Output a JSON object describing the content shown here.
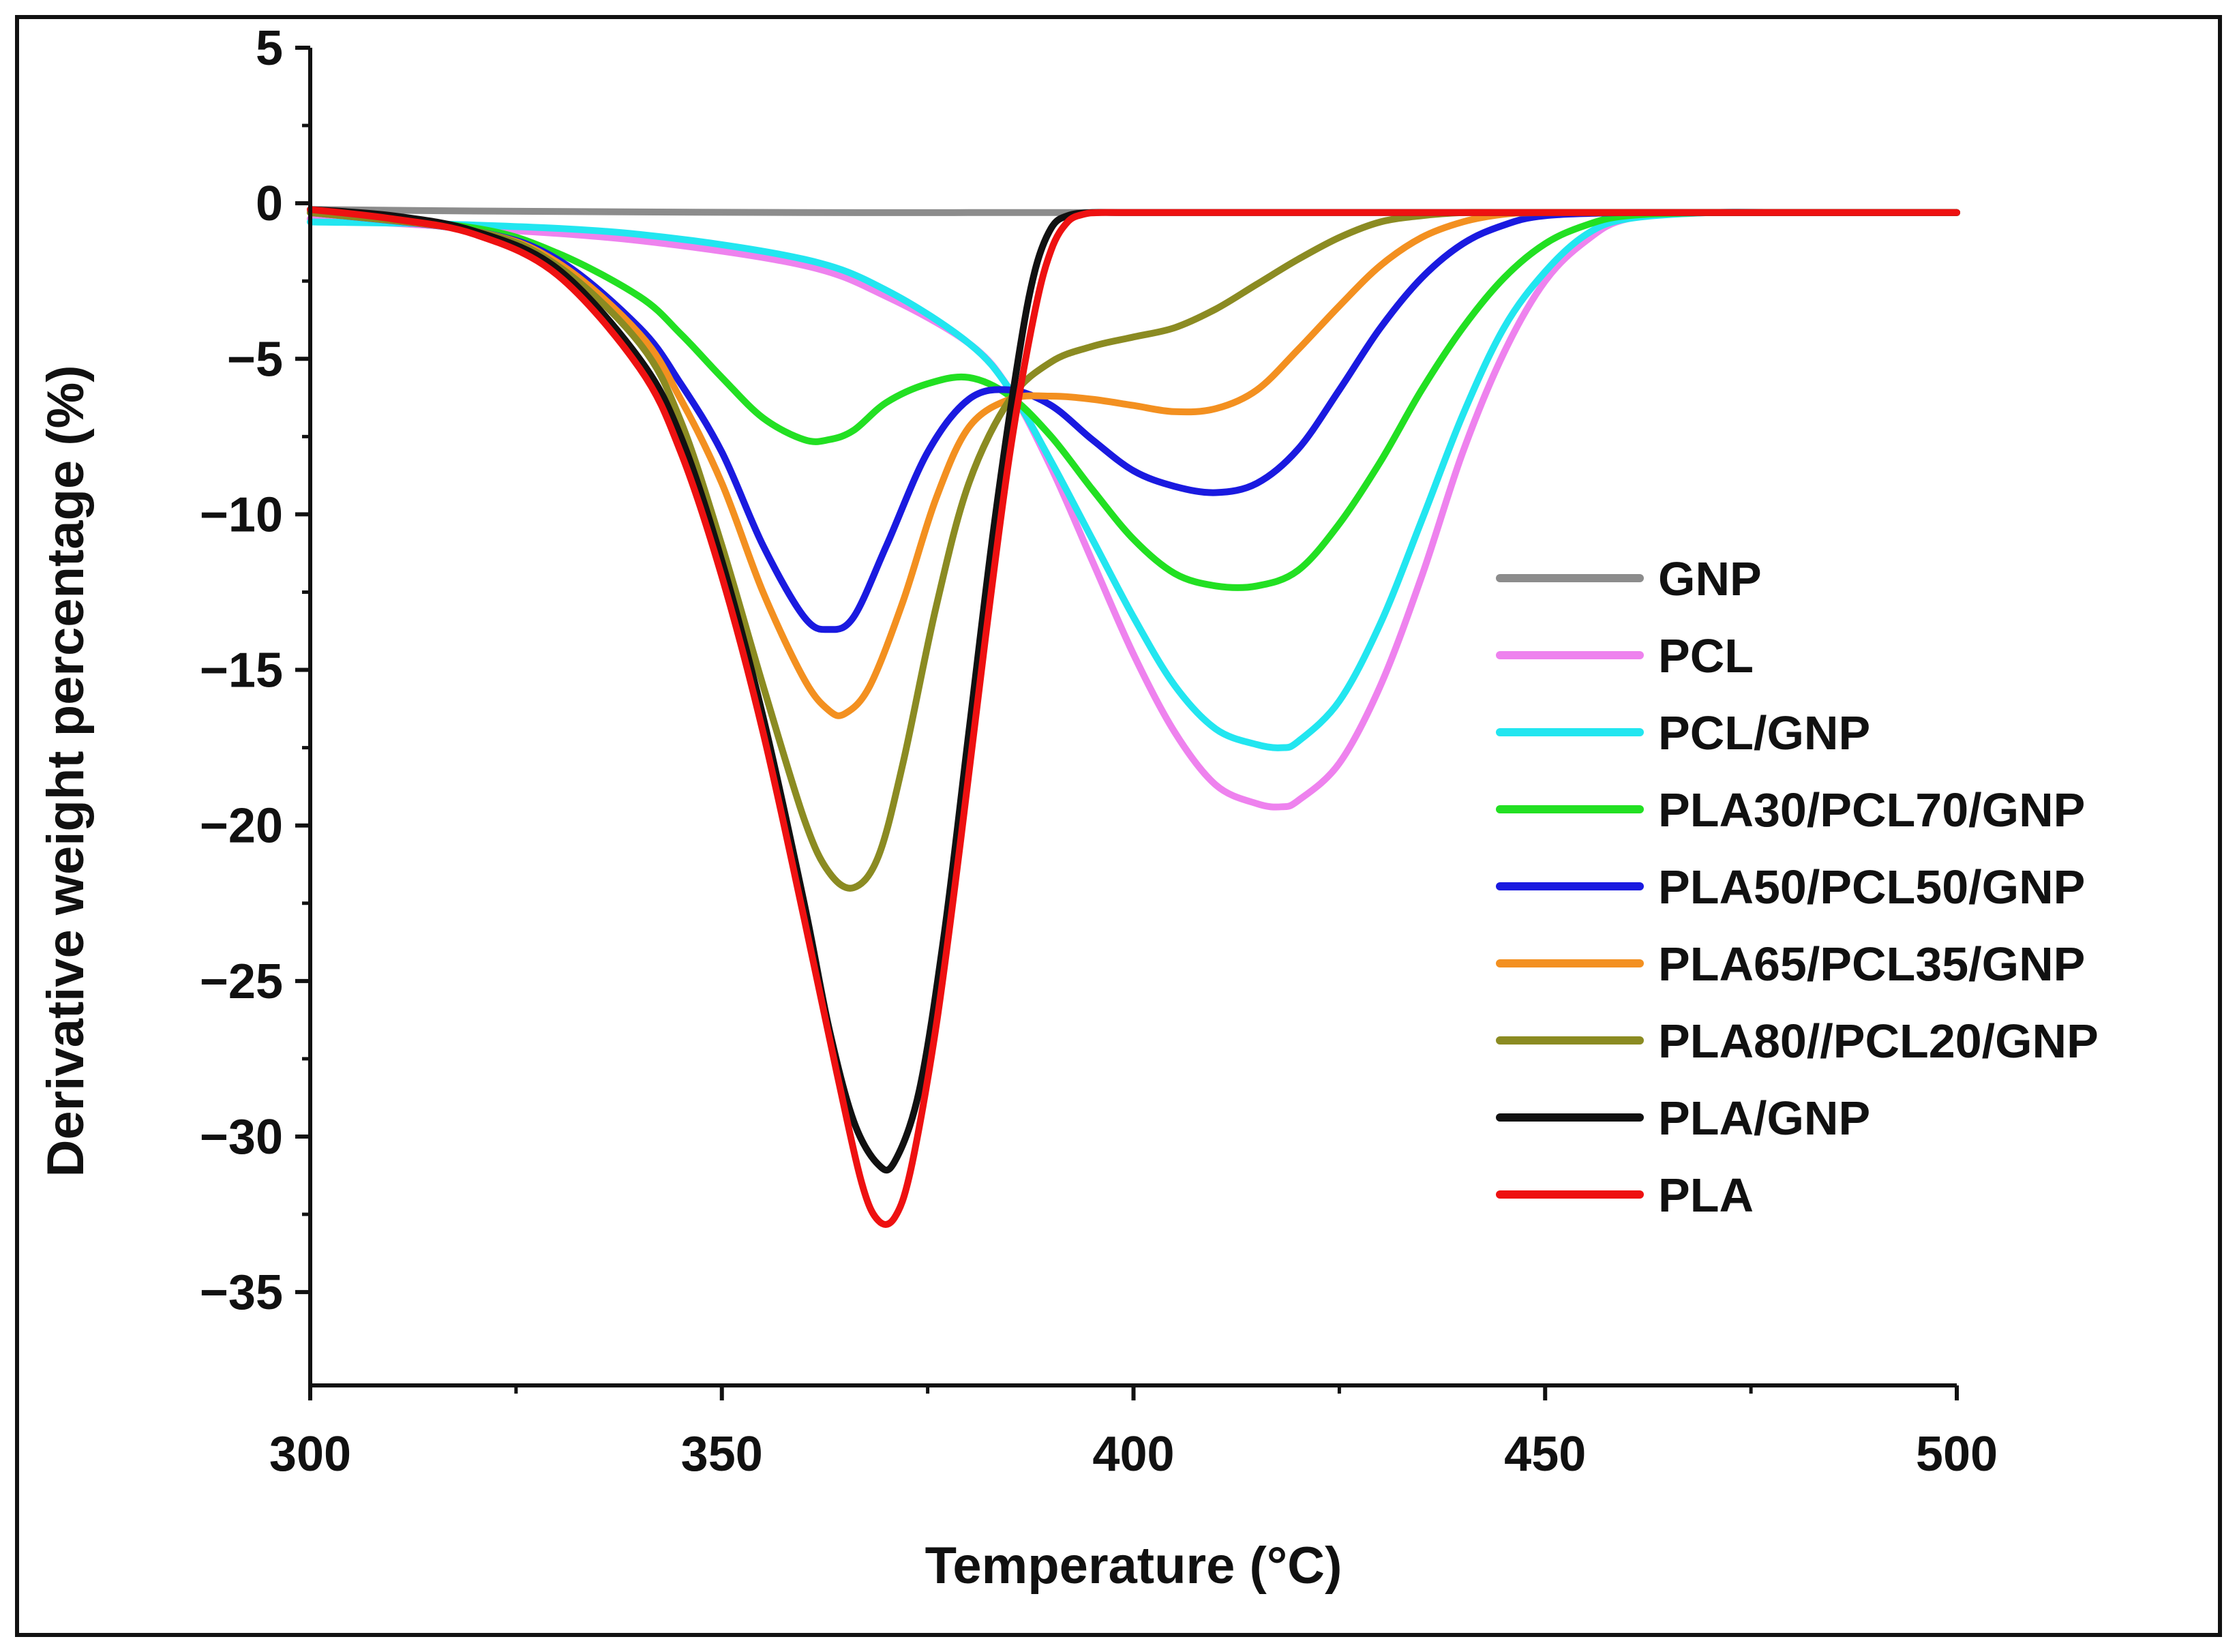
{
  "chart_data": {
    "type": "line",
    "title": "",
    "xlabel": "Temperature (°C)",
    "ylabel": "Derivative weight percentage (%)",
    "xlim": [
      300,
      500
    ],
    "ylim": [
      -38,
      5
    ],
    "xticks": [
      300,
      350,
      400,
      450,
      500
    ],
    "yticks": [
      5,
      0,
      -5,
      -10,
      -15,
      -20,
      -25,
      -30,
      -35
    ],
    "ytick_labels": [
      "5",
      "0",
      "−5",
      "−10",
      "−15",
      "−20",
      "−25",
      "−30",
      "−35"
    ],
    "legend_position": "right",
    "series": [
      {
        "name": "GNP",
        "color": "#8c8c8c",
        "x": [
          300,
          320,
          340,
          360,
          380,
          400,
          420,
          440,
          460,
          480,
          500
        ],
        "y": [
          -0.2,
          -0.25,
          -0.28,
          -0.3,
          -0.3,
          -0.3,
          -0.3,
          -0.3,
          -0.3,
          -0.3,
          -0.3
        ]
      },
      {
        "name": "PCL",
        "color": "#ee82ee",
        "x": [
          300,
          320,
          340,
          360,
          370,
          380,
          385,
          390,
          395,
          400,
          405,
          410,
          415,
          418,
          420,
          425,
          430,
          435,
          440,
          445,
          450,
          455,
          460,
          470,
          480,
          490,
          500
        ],
        "y": [
          -0.5,
          -0.8,
          -1.2,
          -2.0,
          -3.0,
          -4.5,
          -6.0,
          -8.5,
          -11.5,
          -14.5,
          -17.0,
          -18.7,
          -19.3,
          -19.4,
          -19.2,
          -18.0,
          -15.5,
          -12.0,
          -8.0,
          -4.8,
          -2.5,
          -1.2,
          -0.5,
          -0.3,
          -0.3,
          -0.3,
          -0.3
        ]
      },
      {
        "name": "PCL/GNP",
        "color": "#22e6f0",
        "x": [
          300,
          320,
          340,
          360,
          370,
          380,
          385,
          390,
          395,
          400,
          405,
          410,
          415,
          418,
          420,
          425,
          430,
          435,
          440,
          445,
          450,
          455,
          460,
          470,
          480,
          490,
          500
        ],
        "y": [
          -0.6,
          -0.7,
          -1.0,
          -1.8,
          -2.8,
          -4.5,
          -6.0,
          -8.3,
          -10.8,
          -13.3,
          -15.5,
          -16.9,
          -17.4,
          -17.5,
          -17.3,
          -16.0,
          -13.5,
          -10.2,
          -6.8,
          -4.0,
          -2.2,
          -1.0,
          -0.5,
          -0.3,
          -0.3,
          -0.3,
          -0.3
        ]
      },
      {
        "name": "PLA30/PCL70/GNP",
        "color": "#22e022",
        "x": [
          300,
          320,
          330,
          340,
          345,
          350,
          355,
          360,
          363,
          366,
          370,
          375,
          380,
          385,
          390,
          395,
          400,
          405,
          410,
          415,
          420,
          425,
          430,
          435,
          440,
          445,
          450,
          455,
          460,
          470,
          480,
          490,
          500
        ],
        "y": [
          -0.3,
          -0.8,
          -1.6,
          -3.0,
          -4.2,
          -5.6,
          -6.9,
          -7.6,
          -7.6,
          -7.3,
          -6.4,
          -5.8,
          -5.6,
          -6.2,
          -7.5,
          -9.2,
          -10.8,
          -11.9,
          -12.3,
          -12.3,
          -11.8,
          -10.3,
          -8.3,
          -6.0,
          -4.0,
          -2.4,
          -1.3,
          -0.7,
          -0.4,
          -0.3,
          -0.3,
          -0.3,
          -0.3
        ]
      },
      {
        "name": "PLA50/PCL50/GNP",
        "color": "#1a1ae0",
        "x": [
          300,
          320,
          330,
          340,
          345,
          350,
          355,
          360,
          363,
          366,
          370,
          375,
          380,
          385,
          390,
          395,
          400,
          405,
          410,
          415,
          420,
          425,
          430,
          435,
          440,
          445,
          450,
          460,
          470,
          480,
          490,
          500
        ],
        "y": [
          -0.3,
          -0.9,
          -1.8,
          -4.0,
          -5.8,
          -8.0,
          -11.0,
          -13.3,
          -13.7,
          -13.3,
          -11.0,
          -8.0,
          -6.3,
          -6.0,
          -6.5,
          -7.6,
          -8.6,
          -9.1,
          -9.3,
          -9.0,
          -7.9,
          -6.0,
          -4.0,
          -2.4,
          -1.3,
          -0.7,
          -0.4,
          -0.3,
          -0.3,
          -0.3,
          -0.3,
          -0.3
        ]
      },
      {
        "name": "PLA65/PCL35/GNP",
        "color": "#f39020",
        "x": [
          300,
          320,
          330,
          340,
          345,
          350,
          355,
          360,
          363,
          365,
          368,
          372,
          376,
          380,
          385,
          390,
          395,
          400,
          405,
          410,
          415,
          420,
          425,
          430,
          435,
          440,
          445,
          450,
          460,
          470,
          480,
          490,
          500
        ],
        "y": [
          -0.3,
          -0.9,
          -1.9,
          -4.2,
          -6.3,
          -9.0,
          -12.5,
          -15.3,
          -16.3,
          -16.4,
          -15.5,
          -12.8,
          -9.5,
          -7.2,
          -6.3,
          -6.2,
          -6.3,
          -6.5,
          -6.7,
          -6.6,
          -6.0,
          -4.7,
          -3.3,
          -2.0,
          -1.1,
          -0.6,
          -0.35,
          -0.3,
          -0.3,
          -0.3,
          -0.3,
          -0.3,
          -0.3
        ]
      },
      {
        "name": "PLA80//PCL20/GNP",
        "color": "#8b8b22",
        "x": [
          300,
          320,
          330,
          340,
          345,
          350,
          355,
          360,
          363,
          366,
          369,
          372,
          376,
          380,
          385,
          390,
          395,
          400,
          405,
          410,
          415,
          420,
          425,
          430,
          435,
          440,
          445,
          450,
          460,
          470,
          480,
          490,
          500
        ],
        "y": [
          -0.3,
          -0.9,
          -2.0,
          -4.5,
          -7.0,
          -11.0,
          -15.5,
          -19.8,
          -21.5,
          -22.0,
          -21.0,
          -18.0,
          -13.0,
          -9.0,
          -6.3,
          -5.1,
          -4.6,
          -4.3,
          -4.0,
          -3.4,
          -2.6,
          -1.8,
          -1.1,
          -0.6,
          -0.4,
          -0.3,
          -0.3,
          -0.3,
          -0.3,
          -0.3,
          -0.3,
          -0.3,
          -0.3
        ]
      },
      {
        "name": "PLA/GNP",
        "color": "#111111",
        "x": [
          300,
          310,
          320,
          330,
          340,
          345,
          350,
          355,
          360,
          363,
          366,
          369,
          371,
          374,
          377,
          380,
          383,
          386,
          388,
          390,
          392,
          395,
          400,
          420,
          440,
          460,
          480,
          500
        ],
        "y": [
          -0.2,
          -0.4,
          -0.9,
          -2.1,
          -5.0,
          -7.5,
          -11.5,
          -16.5,
          -22.5,
          -26.5,
          -29.5,
          -30.9,
          -30.8,
          -28.5,
          -23.5,
          -17.0,
          -10.5,
          -5.0,
          -2.2,
          -0.8,
          -0.4,
          -0.3,
          -0.3,
          -0.3,
          -0.3,
          -0.3,
          -0.3,
          -0.3
        ]
      },
      {
        "name": "PLA",
        "color": "#ee1111",
        "x": [
          300,
          310,
          320,
          330,
          340,
          345,
          350,
          355,
          360,
          364,
          367,
          369,
          371,
          373,
          376,
          379,
          382,
          385,
          388,
          390,
          392,
          394,
          396,
          400,
          420,
          440,
          460,
          480,
          500
        ],
        "y": [
          -0.2,
          -0.5,
          -1.0,
          -2.3,
          -5.3,
          -8.0,
          -12.0,
          -17.0,
          -23.0,
          -28.0,
          -31.5,
          -32.7,
          -32.6,
          -31.0,
          -26.5,
          -20.5,
          -14.0,
          -8.0,
          -3.5,
          -1.5,
          -0.6,
          -0.35,
          -0.3,
          -0.3,
          -0.3,
          -0.3,
          -0.3,
          -0.3,
          -0.3
        ]
      }
    ]
  }
}
